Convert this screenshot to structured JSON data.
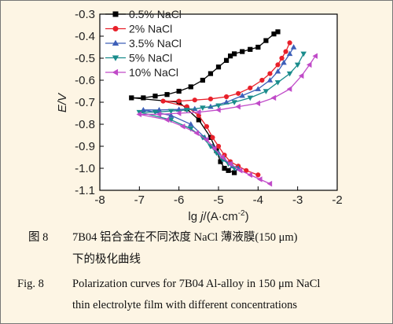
{
  "chart_data": {
    "type": "line",
    "xlabel_main": "lg ",
    "xlabel_var": "j",
    "xlabel_unit": "/(A·cm",
    "xlabel_sup": "-2",
    "xlabel_close": ")",
    "ylabel": "E/V",
    "xlim": [
      -8,
      -2
    ],
    "ylim": [
      -1.1,
      -0.3
    ],
    "xticks": [
      "-8",
      "-7",
      "-6",
      "-5",
      "-4",
      "-3",
      "-2"
    ],
    "yticks": [
      "-0.3",
      "-0.4",
      "-0.5",
      "-0.6",
      "-0.7",
      "-0.8",
      "-0.9",
      "-1.0",
      "-1.1"
    ],
    "legend_position": "top-left",
    "series": [
      {
        "name": "0.5% NaCl",
        "color": "#000000",
        "marker": "square",
        "points": [
          [
            -7.2,
            -0.68
          ],
          [
            -6.9,
            -0.68
          ],
          [
            -6.6,
            -0.672
          ],
          [
            -6.3,
            -0.665
          ],
          [
            -6.0,
            -0.65
          ],
          [
            -5.7,
            -0.63
          ],
          [
            -5.4,
            -0.6
          ],
          [
            -5.2,
            -0.57
          ],
          [
            -5.0,
            -0.54
          ],
          [
            -4.8,
            -0.51
          ],
          [
            -4.7,
            -0.49
          ],
          [
            -4.6,
            -0.48
          ],
          [
            -4.4,
            -0.47
          ],
          [
            -4.2,
            -0.46
          ],
          [
            -4.0,
            -0.45
          ],
          [
            -3.8,
            -0.42
          ],
          [
            -3.6,
            -0.39
          ],
          [
            -3.5,
            -0.38
          ],
          [
            -6.0,
            -0.7
          ],
          [
            -5.8,
            -0.73
          ],
          [
            -5.5,
            -0.78
          ],
          [
            -5.2,
            -0.86
          ],
          [
            -5.05,
            -0.92
          ],
          [
            -4.95,
            -0.97
          ],
          [
            -4.85,
            -1.0
          ],
          [
            -4.75,
            -1.01
          ],
          [
            -4.6,
            -1.02
          ]
        ]
      },
      {
        "name": "2% NaCl",
        "color": "#e8202a",
        "marker": "circle",
        "points": [
          [
            -6.4,
            -0.695
          ],
          [
            -6.0,
            -0.695
          ],
          [
            -5.6,
            -0.69
          ],
          [
            -5.2,
            -0.685
          ],
          [
            -4.8,
            -0.675
          ],
          [
            -4.5,
            -0.66
          ],
          [
            -4.2,
            -0.635
          ],
          [
            -3.9,
            -0.6
          ],
          [
            -3.7,
            -0.57
          ],
          [
            -3.5,
            -0.53
          ],
          [
            -3.4,
            -0.5
          ],
          [
            -3.3,
            -0.47
          ],
          [
            -3.2,
            -0.43
          ],
          [
            -5.8,
            -0.72
          ],
          [
            -5.5,
            -0.76
          ],
          [
            -5.3,
            -0.81
          ],
          [
            -5.15,
            -0.86
          ],
          [
            -5.0,
            -0.9
          ],
          [
            -4.85,
            -0.94
          ],
          [
            -4.7,
            -0.97
          ],
          [
            -4.5,
            -0.99
          ],
          [
            -4.3,
            -1.01
          ],
          [
            -4.0,
            -1.03
          ]
        ]
      },
      {
        "name": "3.5% NaCl",
        "color": "#3d5fb8",
        "marker": "triangle-up",
        "points": [
          [
            -6.9,
            -0.735
          ],
          [
            -6.5,
            -0.735
          ],
          [
            -6.0,
            -0.733
          ],
          [
            -5.6,
            -0.73
          ],
          [
            -5.2,
            -0.72
          ],
          [
            -4.8,
            -0.7
          ],
          [
            -4.4,
            -0.67
          ],
          [
            -4.0,
            -0.64
          ],
          [
            -3.7,
            -0.6
          ],
          [
            -3.5,
            -0.56
          ],
          [
            -3.35,
            -0.52
          ],
          [
            -3.2,
            -0.48
          ],
          [
            -3.1,
            -0.45
          ],
          [
            -6.2,
            -0.76
          ],
          [
            -5.7,
            -0.8
          ],
          [
            -5.35,
            -0.86
          ],
          [
            -5.15,
            -0.9
          ],
          [
            -5.0,
            -0.93
          ],
          [
            -4.85,
            -0.96
          ],
          [
            -4.65,
            -0.99
          ],
          [
            -4.5,
            -1.0
          ]
        ]
      },
      {
        "name": "5% NaCl",
        "color": "#1a8c8c",
        "marker": "triangle-down",
        "points": [
          [
            -7.0,
            -0.745
          ],
          [
            -6.6,
            -0.745
          ],
          [
            -6.2,
            -0.74
          ],
          [
            -5.8,
            -0.735
          ],
          [
            -5.4,
            -0.725
          ],
          [
            -5.0,
            -0.715
          ],
          [
            -4.6,
            -0.7
          ],
          [
            -4.2,
            -0.68
          ],
          [
            -3.8,
            -0.65
          ],
          [
            -3.5,
            -0.61
          ],
          [
            -3.2,
            -0.57
          ],
          [
            -3.0,
            -0.53
          ],
          [
            -2.85,
            -0.48
          ],
          [
            -6.2,
            -0.78
          ],
          [
            -5.7,
            -0.82
          ],
          [
            -5.4,
            -0.86
          ],
          [
            -5.2,
            -0.9
          ],
          [
            -5.05,
            -0.93
          ],
          [
            -4.9,
            -0.96
          ],
          [
            -4.75,
            -0.98
          ],
          [
            -4.6,
            -1.0
          ]
        ]
      },
      {
        "name": "10% NaCl",
        "color": "#c04ac8",
        "marker": "triangle-left",
        "points": [
          [
            -7.0,
            -0.755
          ],
          [
            -6.5,
            -0.755
          ],
          [
            -6.0,
            -0.75
          ],
          [
            -5.5,
            -0.745
          ],
          [
            -5.0,
            -0.735
          ],
          [
            -4.5,
            -0.72
          ],
          [
            -4.0,
            -0.705
          ],
          [
            -3.6,
            -0.68
          ],
          [
            -3.2,
            -0.64
          ],
          [
            -2.9,
            -0.58
          ],
          [
            -2.7,
            -0.53
          ],
          [
            -2.55,
            -0.49
          ],
          [
            -6.3,
            -0.78
          ],
          [
            -5.9,
            -0.81
          ],
          [
            -5.55,
            -0.84
          ],
          [
            -5.3,
            -0.87
          ],
          [
            -5.1,
            -0.91
          ],
          [
            -4.9,
            -0.95
          ],
          [
            -4.7,
            -0.98
          ],
          [
            -4.45,
            -1.01
          ],
          [
            -4.2,
            -1.03
          ],
          [
            -3.95,
            -1.05
          ],
          [
            -3.7,
            -1.07
          ]
        ]
      }
    ]
  },
  "caption": {
    "cn_label": "图 8",
    "cn_line1": "7B04 铝合金在不同浓度 NaCl 薄液膜(150 μm)",
    "cn_line2": "下的极化曲线",
    "en_label": "Fig. 8",
    "en_line1": "Polarization curves for 7B04 Al-alloy in 150 μm NaCl",
    "en_line2": "thin electrolyte film with different concentrations"
  }
}
